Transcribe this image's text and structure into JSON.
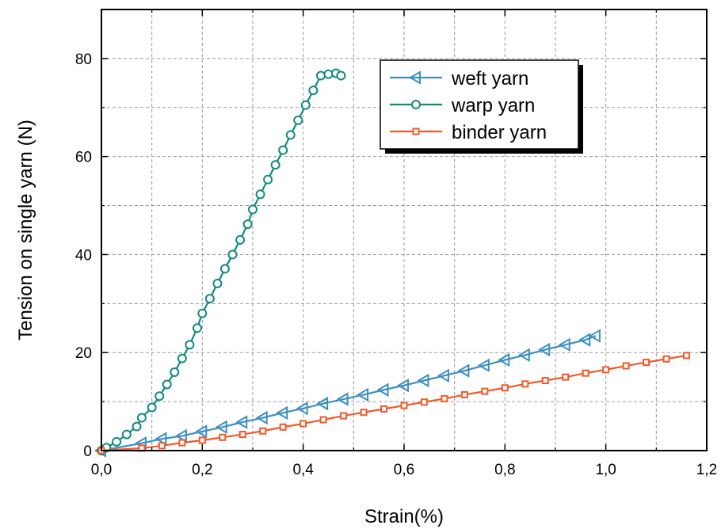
{
  "chart_data": {
    "type": "line",
    "title": "",
    "xlabel": "Strain(%)",
    "ylabel": "Tension on single yarn (N)",
    "xlim": [
      0,
      1.2
    ],
    "ylim": [
      0,
      90
    ],
    "grid": true,
    "legend_position": "top-right",
    "x_ticks": [
      "0,0",
      "0,2",
      "0,4",
      "0,6",
      "0,8",
      "1,0",
      "1,2"
    ],
    "x_tick_values": [
      0,
      0.2,
      0.4,
      0.6,
      0.8,
      1.0,
      1.2
    ],
    "y_ticks": [
      "0",
      "20",
      "40",
      "60",
      "80"
    ],
    "y_tick_values": [
      0,
      20,
      40,
      60,
      80
    ],
    "series": [
      {
        "name": "weft yarn",
        "color": "#3d8fc2",
        "marker": "triangle-left",
        "x": [
          0.0,
          0.08,
          0.12,
          0.16,
          0.2,
          0.24,
          0.28,
          0.32,
          0.36,
          0.4,
          0.44,
          0.48,
          0.52,
          0.56,
          0.6,
          0.64,
          0.68,
          0.72,
          0.76,
          0.8,
          0.84,
          0.88,
          0.92,
          0.96,
          0.98
        ],
        "y": [
          0.0,
          1.5,
          2.4,
          3.0,
          3.9,
          4.8,
          5.8,
          6.7,
          7.7,
          8.6,
          9.6,
          10.5,
          11.4,
          12.4,
          13.3,
          14.3,
          15.3,
          16.3,
          17.4,
          18.5,
          19.5,
          20.6,
          21.6,
          22.6,
          23.4
        ]
      },
      {
        "name": "warp yarn",
        "color": "#138a7e",
        "marker": "circle",
        "x": [
          0.0,
          0.01,
          0.03,
          0.05,
          0.07,
          0.08,
          0.1,
          0.115,
          0.13,
          0.145,
          0.16,
          0.175,
          0.19,
          0.2,
          0.215,
          0.23,
          0.245,
          0.26,
          0.275,
          0.29,
          0.3,
          0.315,
          0.33,
          0.345,
          0.36,
          0.375,
          0.39,
          0.405,
          0.42,
          0.435,
          0.45,
          0.465,
          0.475
        ],
        "y": [
          0.0,
          0.6,
          1.8,
          3.3,
          4.9,
          6.7,
          8.8,
          11.1,
          13.5,
          16.0,
          18.8,
          21.6,
          25.0,
          28.0,
          31.0,
          34.1,
          37.1,
          40.0,
          43.0,
          46.2,
          49.2,
          52.3,
          55.3,
          58.3,
          61.3,
          64.4,
          67.4,
          70.5,
          73.5,
          76.5,
          76.8,
          77.0,
          76.5
        ]
      },
      {
        "name": "binder yarn",
        "color": "#f2592a",
        "marker": "square",
        "x": [
          0.0,
          0.08,
          0.12,
          0.16,
          0.2,
          0.24,
          0.28,
          0.32,
          0.36,
          0.4,
          0.44,
          0.48,
          0.52,
          0.56,
          0.6,
          0.64,
          0.68,
          0.72,
          0.76,
          0.8,
          0.84,
          0.88,
          0.92,
          0.96,
          1.0,
          1.04,
          1.08,
          1.12,
          1.16
        ],
        "y": [
          0.0,
          0.5,
          1.0,
          1.6,
          2.1,
          2.7,
          3.3,
          4.0,
          4.8,
          5.5,
          6.3,
          7.1,
          7.8,
          8.5,
          9.2,
          9.9,
          10.6,
          11.4,
          12.1,
          12.8,
          13.6,
          14.3,
          15.0,
          15.8,
          16.5,
          17.3,
          18.0,
          18.7,
          19.4
        ]
      }
    ]
  }
}
